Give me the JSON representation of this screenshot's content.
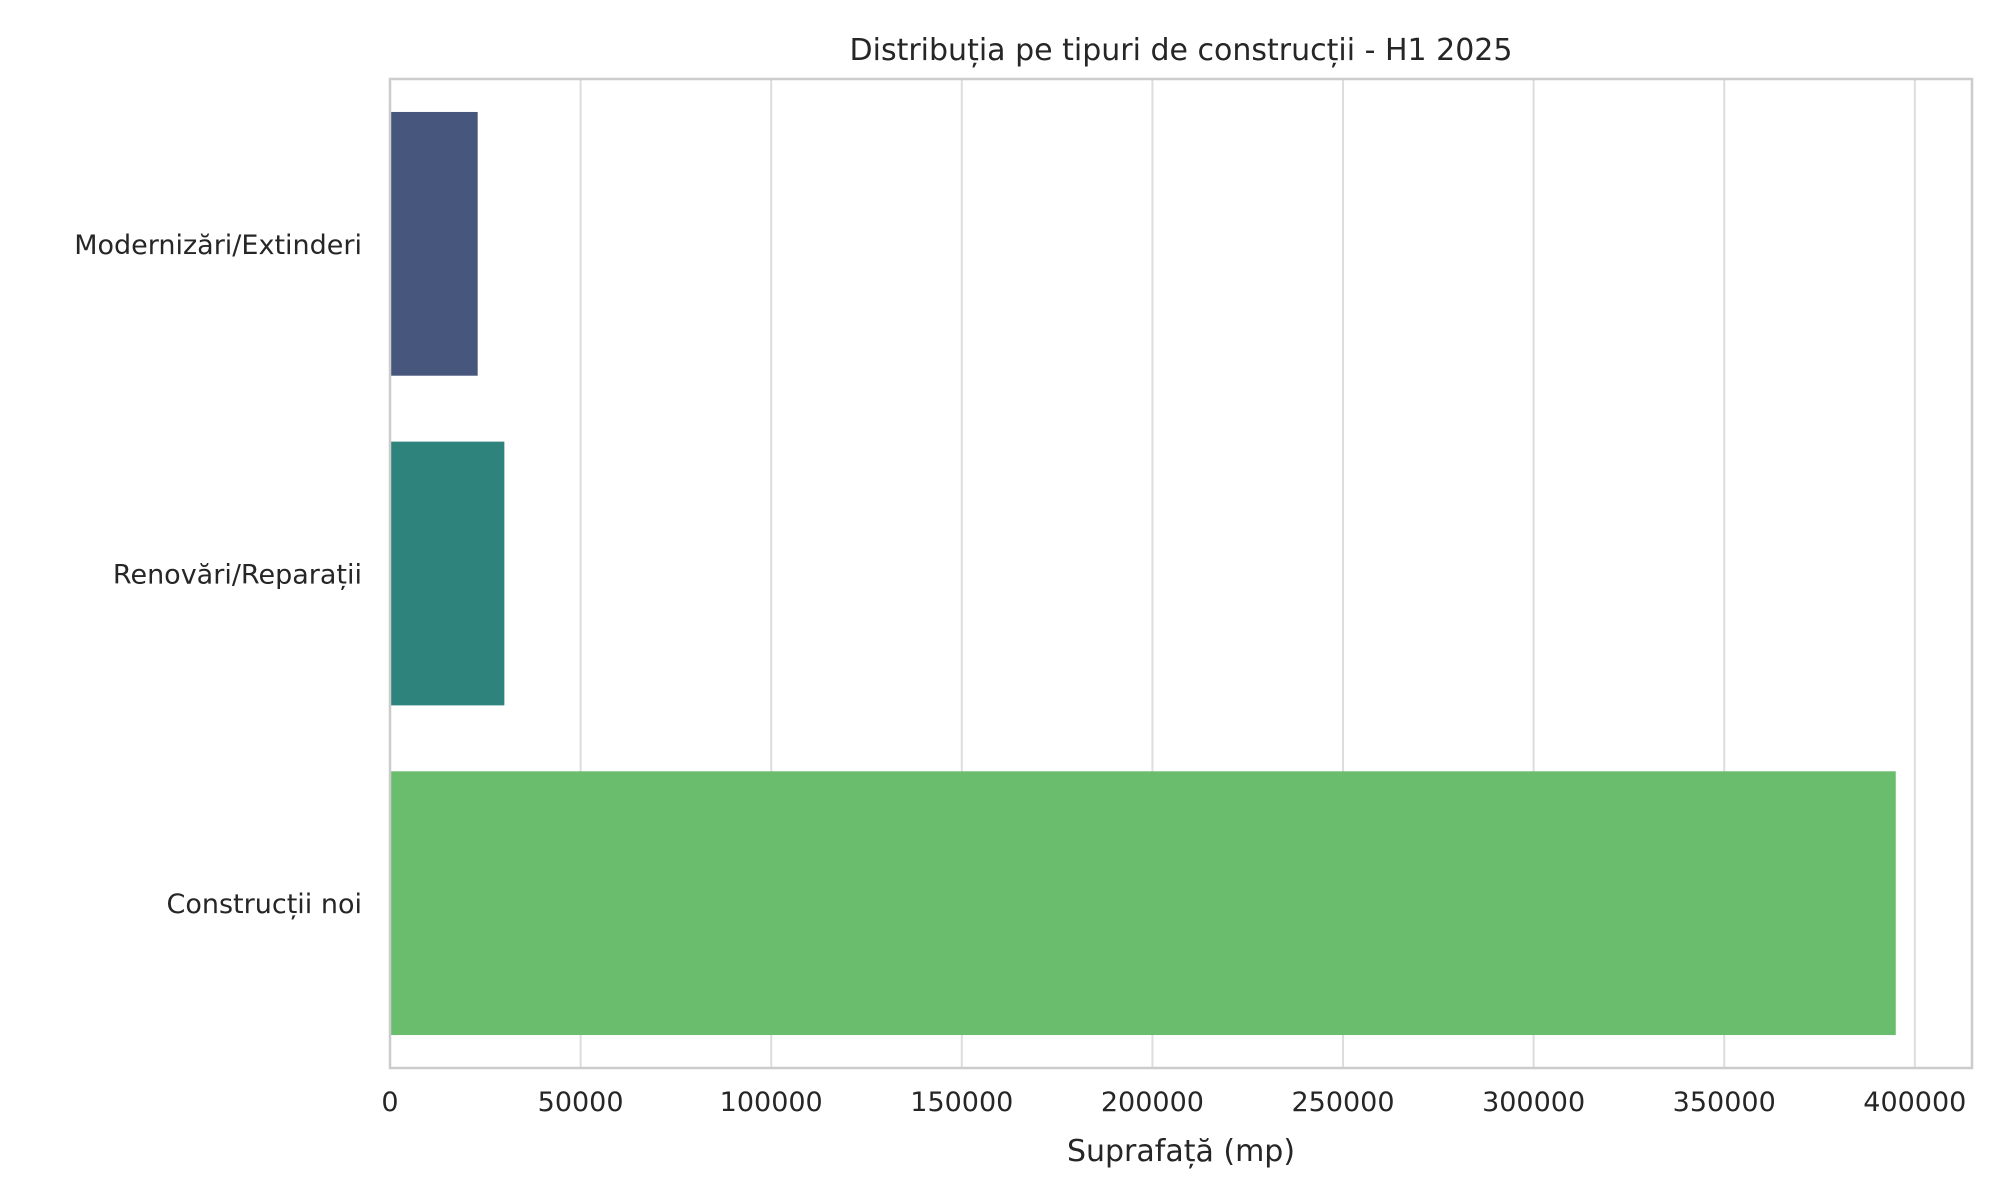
{
  "chart_data": {
    "type": "bar",
    "orientation": "horizontal",
    "title": "Distribuția pe tipuri de construcții - H1 2025",
    "xlabel": "Suprafață (mp)",
    "ylabel": "",
    "categories": [
      "Modernizări/Extinderi",
      "Renovări/Reparații",
      "Construcții noi"
    ],
    "values": [
      23000,
      30000,
      395000
    ],
    "colors": [
      "#46567c",
      "#2e837c",
      "#6bbd6e"
    ],
    "xlim": [
      0,
      415000
    ],
    "xticks": [
      0,
      50000,
      100000,
      150000,
      200000,
      250000,
      300000,
      350000,
      400000
    ],
    "xtick_labels": [
      "0",
      "50000",
      "100000",
      "150000",
      "200000",
      "250000",
      "300000",
      "350000",
      "400000"
    ],
    "grid": "vertical",
    "legend": "none"
  }
}
